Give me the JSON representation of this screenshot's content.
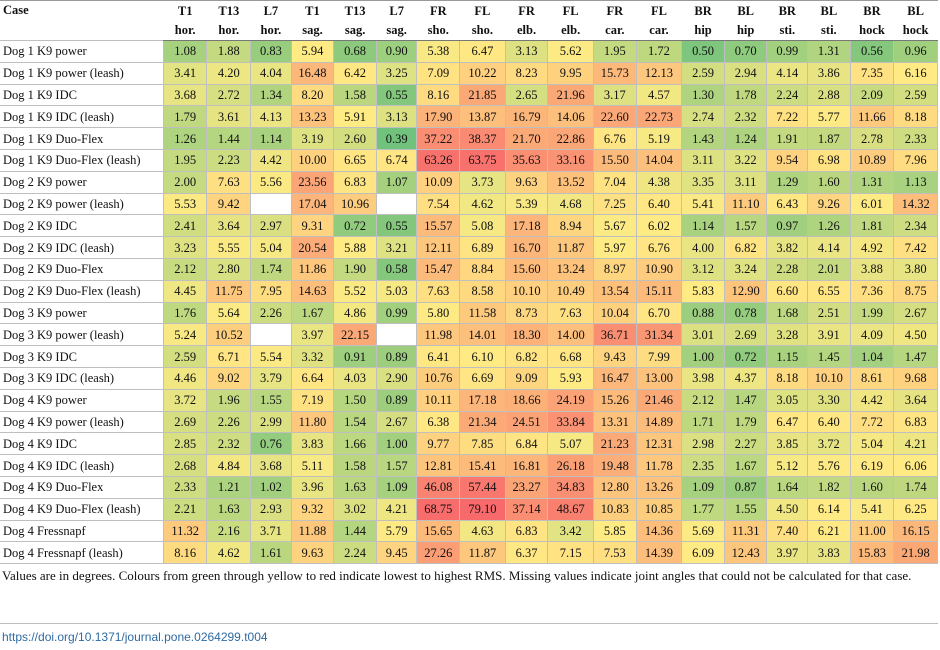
{
  "table": {
    "case_header": "Case",
    "headers_top": [
      "T1",
      "T13",
      "L7",
      "T1",
      "T13",
      "L7",
      "FR",
      "FL",
      "FR",
      "FL",
      "FR",
      "FL",
      "BR",
      "BL",
      "BR",
      "BL",
      "BR",
      "BL"
    ],
    "headers_bottom": [
      "hor.",
      "hor.",
      "hor.",
      "sag.",
      "sag.",
      "sag.",
      "sho.",
      "sho.",
      "elb.",
      "elb.",
      "car.",
      "car.",
      "hip",
      "hip",
      "sti.",
      "sti.",
      "hock",
      "hock"
    ],
    "rows": [
      {
        "case": "Dog 1 K9 power",
        "values": [
          "1.08",
          "1.88",
          "0.83",
          "5.94",
          "0.68",
          "0.90",
          "5.38",
          "6.47",
          "3.13",
          "5.62",
          "1.95",
          "1.72",
          "0.50",
          "0.70",
          "0.99",
          "1.31",
          "0.56",
          "0.96"
        ]
      },
      {
        "case": "Dog 1 K9 power (leash)",
        "values": [
          "3.41",
          "4.20",
          "4.04",
          "16.48",
          "6.42",
          "3.25",
          "7.09",
          "10.22",
          "8.23",
          "9.95",
          "15.73",
          "12.13",
          "2.59",
          "2.94",
          "4.14",
          "3.86",
          "7.35",
          "6.16"
        ]
      },
      {
        "case": "Dog 1 K9 IDC",
        "values": [
          "3.68",
          "2.72",
          "1.34",
          "8.20",
          "1.58",
          "0.55",
          "8.16",
          "21.85",
          "2.65",
          "21.96",
          "3.17",
          "4.57",
          "1.30",
          "1.78",
          "2.24",
          "2.88",
          "2.09",
          "2.59"
        ]
      },
      {
        "case": "Dog 1 K9 IDC (leash)",
        "values": [
          "1.79",
          "3.61",
          "4.13",
          "13.23",
          "5.91",
          "3.13",
          "17.90",
          "13.87",
          "16.79",
          "14.06",
          "22.60",
          "22.73",
          "2.74",
          "2.32",
          "7.22",
          "5.77",
          "11.66",
          "8.18"
        ]
      },
      {
        "case": "Dog 1 K9 Duo-Flex",
        "values": [
          "1.26",
          "1.44",
          "1.14",
          "3.19",
          "2.60",
          "0.39",
          "37.22",
          "38.37",
          "21.70",
          "22.86",
          "6.76",
          "5.19",
          "1.43",
          "1.24",
          "1.91",
          "1.87",
          "2.78",
          "2.33"
        ]
      },
      {
        "case": "Dog 1 K9 Duo-Flex (leash)",
        "values": [
          "1.95",
          "2.23",
          "4.42",
          "10.00",
          "6.65",
          "6.74",
          "63.26",
          "63.75",
          "35.63",
          "33.16",
          "15.50",
          "14.04",
          "3.11",
          "3.22",
          "9.54",
          "6.98",
          "10.89",
          "7.96"
        ]
      },
      {
        "case": "Dog 2 K9 power",
        "values": [
          "2.00",
          "7.63",
          "5.56",
          "23.56",
          "6.83",
          "1.07",
          "10.09",
          "3.73",
          "9.63",
          "13.52",
          "7.04",
          "4.38",
          "3.35",
          "3.11",
          "1.29",
          "1.60",
          "1.31",
          "1.13"
        ]
      },
      {
        "case": "Dog 2 K9 power (leash)",
        "values": [
          "5.53",
          "9.42",
          "",
          "17.04",
          "10.96",
          "",
          "7.54",
          "4.62",
          "5.39",
          "4.68",
          "7.25",
          "6.40",
          "5.41",
          "11.10",
          "6.43",
          "9.26",
          "6.01",
          "14.32"
        ]
      },
      {
        "case": "Dog 2 K9 IDC",
        "values": [
          "2.41",
          "3.64",
          "2.97",
          "9.31",
          "0.72",
          "0.55",
          "15.57",
          "5.08",
          "17.18",
          "8.94",
          "5.67",
          "6.02",
          "1.14",
          "1.57",
          "0.97",
          "1.26",
          "1.81",
          "2.34"
        ]
      },
      {
        "case": "Dog 2 K9 IDC (leash)",
        "values": [
          "3.23",
          "5.55",
          "5.04",
          "20.54",
          "5.88",
          "3.21",
          "12.11",
          "6.89",
          "16.70",
          "11.87",
          "5.97",
          "6.76",
          "4.00",
          "6.82",
          "3.82",
          "4.14",
          "4.92",
          "7.42"
        ]
      },
      {
        "case": "Dog 2 K9 Duo-Flex",
        "values": [
          "2.12",
          "2.80",
          "1.74",
          "11.86",
          "1.90",
          "0.58",
          "15.47",
          "8.84",
          "15.60",
          "13.24",
          "8.97",
          "10.90",
          "3.12",
          "3.24",
          "2.28",
          "2.01",
          "3.88",
          "3.80"
        ]
      },
      {
        "case": "Dog 2 K9 Duo-Flex (leash)",
        "values": [
          "4.45",
          "11.75",
          "7.95",
          "14.63",
          "5.52",
          "5.03",
          "7.63",
          "8.58",
          "10.10",
          "10.49",
          "13.54",
          "15.11",
          "5.83",
          "12.90",
          "6.60",
          "6.55",
          "7.36",
          "8.75"
        ]
      },
      {
        "case": "Dog 3 K9 power",
        "values": [
          "1.76",
          "5.64",
          "2.26",
          "1.67",
          "4.86",
          "0.99",
          "5.80",
          "11.58",
          "8.73",
          "7.63",
          "10.04",
          "6.70",
          "0.88",
          "0.78",
          "1.68",
          "2.51",
          "1.99",
          "2.67"
        ]
      },
      {
        "case": "Dog 3 K9 power (leash)",
        "values": [
          "5.24",
          "10.52",
          "",
          "3.97",
          "22.15",
          "",
          "11.98",
          "14.01",
          "18.30",
          "14.00",
          "36.71",
          "31.34",
          "3.01",
          "2.69",
          "3.28",
          "3.91",
          "4.09",
          "4.50"
        ]
      },
      {
        "case": "Dog 3 K9 IDC",
        "values": [
          "2.59",
          "6.71",
          "5.54",
          "3.32",
          "0.91",
          "0.89",
          "6.41",
          "6.10",
          "6.82",
          "6.68",
          "9.43",
          "7.99",
          "1.00",
          "0.72",
          "1.15",
          "1.45",
          "1.04",
          "1.47"
        ]
      },
      {
        "case": "Dog 3 K9 IDC (leash)",
        "values": [
          "4.46",
          "9.02",
          "3.79",
          "6.64",
          "4.03",
          "2.90",
          "10.76",
          "6.69",
          "9.09",
          "5.93",
          "16.47",
          "13.00",
          "3.98",
          "4.37",
          "8.18",
          "10.10",
          "8.61",
          "9.68"
        ]
      },
      {
        "case": "Dog 4 K9 power",
        "values": [
          "3.72",
          "1.96",
          "1.55",
          "7.19",
          "1.50",
          "0.89",
          "10.11",
          "17.18",
          "18.66",
          "24.19",
          "15.26",
          "21.46",
          "2.12",
          "1.47",
          "3.05",
          "3.30",
          "4.42",
          "3.64"
        ]
      },
      {
        "case": "Dog 4 K9 power (leash)",
        "values": [
          "2.69",
          "2.26",
          "2.99",
          "11.80",
          "1.54",
          "2.67",
          "6.38",
          "21.34",
          "24.51",
          "33.84",
          "13.31",
          "14.89",
          "1.71",
          "1.79",
          "6.47",
          "6.40",
          "7.72",
          "6.83"
        ]
      },
      {
        "case": "Dog 4 K9 IDC",
        "values": [
          "2.85",
          "2.32",
          "0.76",
          "3.83",
          "1.66",
          "1.00",
          "9.77",
          "7.85",
          "6.84",
          "5.07",
          "21.23",
          "12.31",
          "2.98",
          "2.27",
          "3.85",
          "3.72",
          "5.04",
          "4.21"
        ]
      },
      {
        "case": "Dog 4 K9 IDC (leash)",
        "values": [
          "2.68",
          "4.84",
          "3.68",
          "5.11",
          "1.58",
          "1.57",
          "12.81",
          "15.41",
          "16.81",
          "26.18",
          "19.48",
          "11.78",
          "2.35",
          "1.67",
          "5.12",
          "5.76",
          "6.19",
          "6.06"
        ]
      },
      {
        "case": "Dog 4 K9 Duo-Flex",
        "values": [
          "2.33",
          "1.21",
          "1.02",
          "3.96",
          "1.63",
          "1.09",
          "46.08",
          "57.44",
          "23.27",
          "34.83",
          "12.80",
          "13.26",
          "1.09",
          "0.87",
          "1.64",
          "1.82",
          "1.60",
          "1.74"
        ]
      },
      {
        "case": "Dog 4 K9 Duo-Flex (leash)",
        "values": [
          "2.21",
          "1.63",
          "2.93",
          "9.32",
          "3.02",
          "4.21",
          "68.75",
          "79.10",
          "37.14",
          "48.67",
          "10.83",
          "10.85",
          "1.77",
          "1.55",
          "4.50",
          "6.14",
          "5.41",
          "6.25"
        ]
      },
      {
        "case": "Dog 4 Fressnapf",
        "values": [
          "11.32",
          "2.16",
          "3.71",
          "11.88",
          "1.44",
          "5.79",
          "15.65",
          "4.63",
          "6.83",
          "3.42",
          "5.85",
          "14.36",
          "5.69",
          "11.31",
          "7.40",
          "6.21",
          "11.00",
          "16.15"
        ]
      },
      {
        "case": "Dog 4 Fressnapf (leash)",
        "values": [
          "8.16",
          "4.62",
          "1.61",
          "9.63",
          "2.24",
          "9.45",
          "27.26",
          "11.87",
          "6.37",
          "7.15",
          "7.53",
          "14.39",
          "6.09",
          "12.43",
          "3.97",
          "3.83",
          "15.83",
          "21.98"
        ]
      }
    ]
  },
  "footnote": "Values are in degrees. Colours from green through yellow to red indicate lowest to highest RMS. Missing values indicate joint angles that could not be calculated for that case.",
  "doi": "https://doi.org/10.1371/journal.pone.0264299.t004",
  "colors": {
    "low": "#63be7b",
    "mid": "#ffeb84",
    "high": "#f8696b",
    "missing": "#ffffff",
    "link": "#2f6aa3"
  }
}
